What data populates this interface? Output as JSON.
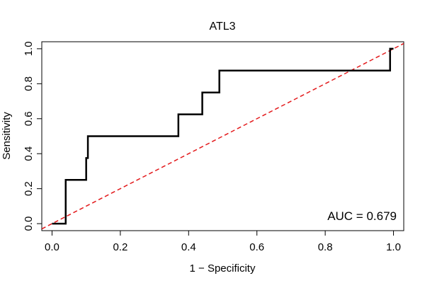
{
  "chart_data": {
    "type": "line",
    "title": "ATL3",
    "xlabel": "1 − Specificity",
    "ylabel": "Sensitivity",
    "xlim": [
      -0.03,
      1.03
    ],
    "ylim": [
      -0.04,
      1.04
    ],
    "x_ticks": [
      0.0,
      0.2,
      0.4,
      0.6,
      0.8,
      1.0
    ],
    "x_tick_labels": [
      "0.0",
      "0.2",
      "0.4",
      "0.6",
      "0.8",
      "1.0"
    ],
    "y_ticks": [
      0.0,
      0.2,
      0.4,
      0.6,
      0.8,
      1.0
    ],
    "y_tick_labels": [
      "0.0",
      "0.2",
      "0.4",
      "0.6",
      "0.8",
      "1.0"
    ],
    "grid": false,
    "annotation": "AUC = 0.679",
    "series": [
      {
        "color": "#000000",
        "points": [
          [
            0.0,
            0.0
          ],
          [
            0.04,
            0.0
          ],
          [
            0.04,
            0.25
          ],
          [
            0.1,
            0.25
          ],
          [
            0.1,
            0.375
          ],
          [
            0.105,
            0.375
          ],
          [
            0.105,
            0.5
          ],
          [
            0.37,
            0.5
          ],
          [
            0.37,
            0.625
          ],
          [
            0.44,
            0.625
          ],
          [
            0.44,
            0.75
          ],
          [
            0.49,
            0.75
          ],
          [
            0.49,
            0.875
          ],
          [
            0.99,
            0.875
          ],
          [
            0.99,
            1.0
          ],
          [
            1.0,
            1.0
          ]
        ]
      }
    ],
    "reference_line": {
      "color": "#e31a1c",
      "dash": "dashed",
      "points": [
        [
          -0.03,
          -0.03
        ],
        [
          1.03,
          1.03
        ]
      ]
    }
  }
}
